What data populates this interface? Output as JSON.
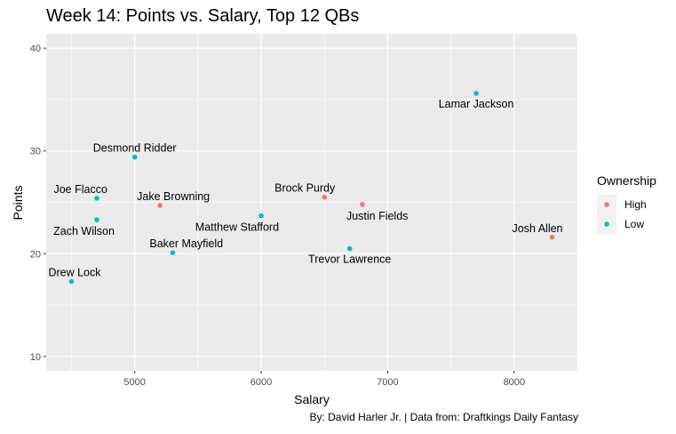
{
  "chart_data": {
    "type": "scatter",
    "title": "Week 14: Points vs. Salary, Top 12 QBs",
    "xlabel": "Salary",
    "ylabel": "Points",
    "caption": "By: David Harler Jr. | Data from: Draftkings Daily Fantasy",
    "xlim": [
      4300,
      8500
    ],
    "ylim": [
      8.6,
      41.4
    ],
    "xticks": [
      5000,
      6000,
      7000,
      8000
    ],
    "yticks": [
      10,
      20,
      30,
      40
    ],
    "grid": true,
    "legend": {
      "title": "Ownership",
      "position": "right",
      "entries": [
        {
          "name": "High",
          "color": "#F8766D"
        },
        {
          "name": "Low",
          "color": "#00BFC4"
        }
      ]
    },
    "points": [
      {
        "name": "Lamar Jackson",
        "x": 7700,
        "y": 35.6,
        "ownership": "Low",
        "label_pos": "below"
      },
      {
        "name": "Desmond Ridder",
        "x": 5000,
        "y": 29.4,
        "ownership": "Low",
        "label_pos": "above"
      },
      {
        "name": "Joe Flacco",
        "x": 4700,
        "y": 25.4,
        "ownership": "Low",
        "label_pos": "above-left"
      },
      {
        "name": "Jake Browning",
        "x": 5200,
        "y": 24.7,
        "ownership": "High",
        "label_pos": "above-right"
      },
      {
        "name": "Brock Purdy",
        "x": 6500,
        "y": 25.5,
        "ownership": "High",
        "label_pos": "above-left"
      },
      {
        "name": "Justin Fields",
        "x": 6800,
        "y": 24.8,
        "ownership": "High",
        "label_pos": "below-right"
      },
      {
        "name": "Matthew Stafford",
        "x": 6000,
        "y": 23.7,
        "ownership": "Low",
        "label_pos": "below-left"
      },
      {
        "name": "Zach Wilson",
        "x": 4700,
        "y": 23.3,
        "ownership": "Low",
        "label_pos": "below-left"
      },
      {
        "name": "Josh Allen",
        "x": 8300,
        "y": 21.6,
        "ownership": "High",
        "label_pos": "above-left"
      },
      {
        "name": "Baker Mayfield",
        "x": 5300,
        "y": 20.1,
        "ownership": "Low",
        "label_pos": "above-right"
      },
      {
        "name": "Trevor Lawrence",
        "x": 6700,
        "y": 20.5,
        "ownership": "Low",
        "label_pos": "below"
      },
      {
        "name": "Drew Lock",
        "x": 4500,
        "y": 17.3,
        "ownership": "Low",
        "label_pos": "above-right"
      }
    ]
  }
}
